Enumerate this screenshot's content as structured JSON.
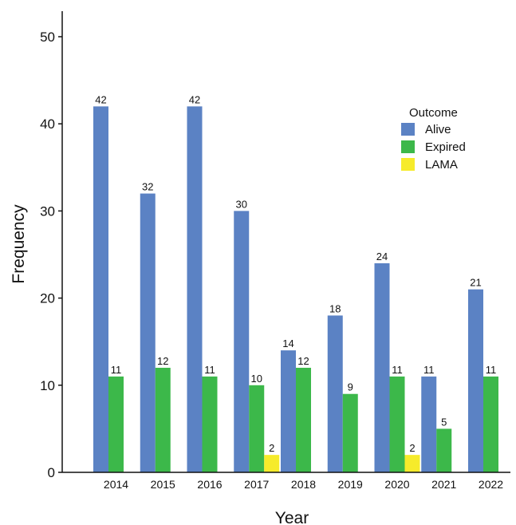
{
  "chart_data": {
    "type": "bar",
    "categories": [
      "2014",
      "2015",
      "2016",
      "2017",
      "2018",
      "2019",
      "2020",
      "2021",
      "2022"
    ],
    "series": [
      {
        "name": "Alive",
        "color": "#5b82c4",
        "values": [
          42,
          32,
          42,
          30,
          14,
          18,
          24,
          11,
          21
        ]
      },
      {
        "name": "Expired",
        "color": "#3cb84a",
        "values": [
          11,
          12,
          11,
          10,
          12,
          9,
          11,
          5,
          11
        ]
      },
      {
        "name": "LAMA",
        "color": "#f6eb2b",
        "values": [
          null,
          null,
          null,
          2,
          null,
          null,
          2,
          null,
          null
        ]
      }
    ],
    "xlabel": "Year",
    "ylabel": "Frequency",
    "ylim": [
      0,
      50
    ],
    "yticks": [
      0,
      10,
      20,
      30,
      40,
      50
    ],
    "legend": {
      "title": "Outcome",
      "position": "top-right"
    },
    "grid": false
  }
}
